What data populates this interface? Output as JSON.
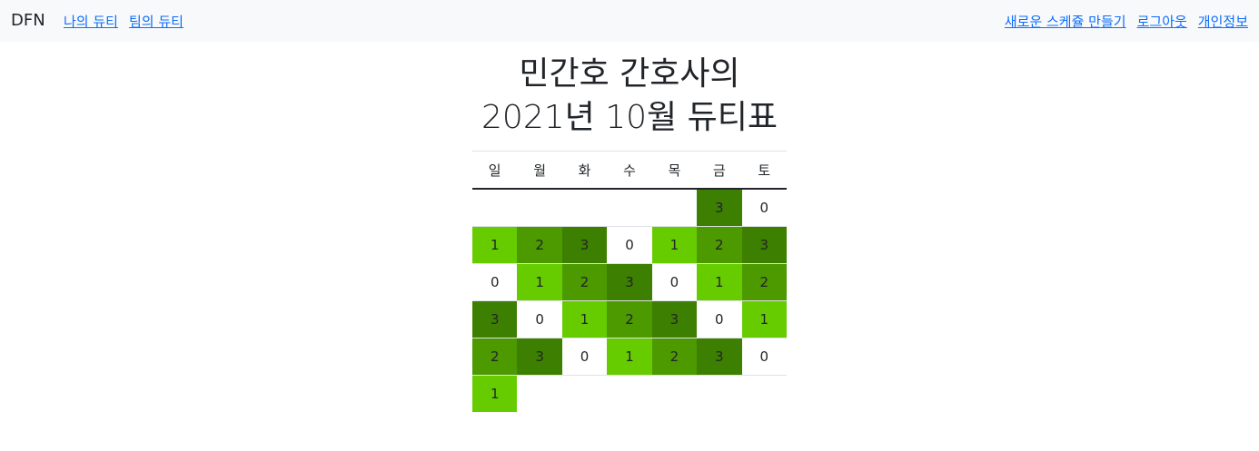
{
  "navbar": {
    "brand": "DFN",
    "left_links": [
      "나의 듀티",
      "팀의 듀티"
    ],
    "right_links": [
      "새로운 스케쥴 만들기",
      "로그아웃",
      "개인정보"
    ]
  },
  "page": {
    "title_line1": "민간호 간호사의",
    "title_line2": "2021년 10월 듀티표"
  },
  "calendar": {
    "weekdays": [
      "일",
      "월",
      "화",
      "수",
      "목",
      "금",
      "토"
    ],
    "weeks": [
      [
        "",
        "",
        "",
        "",
        "",
        "3",
        "0"
      ],
      [
        "1",
        "2",
        "3",
        "0",
        "1",
        "2",
        "3"
      ],
      [
        "0",
        "1",
        "2",
        "3",
        "0",
        "1",
        "2"
      ],
      [
        "3",
        "0",
        "1",
        "2",
        "3",
        "0",
        "1"
      ],
      [
        "2",
        "3",
        "0",
        "1",
        "2",
        "3",
        "0"
      ],
      [
        "1",
        "",
        "",
        "",
        "",
        "",
        ""
      ]
    ]
  },
  "colors": {
    "level_0": "#ffffff",
    "level_1": "#66cc00",
    "level_2": "#4c9900",
    "level_3": "#3d7f00",
    "link": "#0d6efd",
    "navbar_bg": "#f8f9fa"
  }
}
